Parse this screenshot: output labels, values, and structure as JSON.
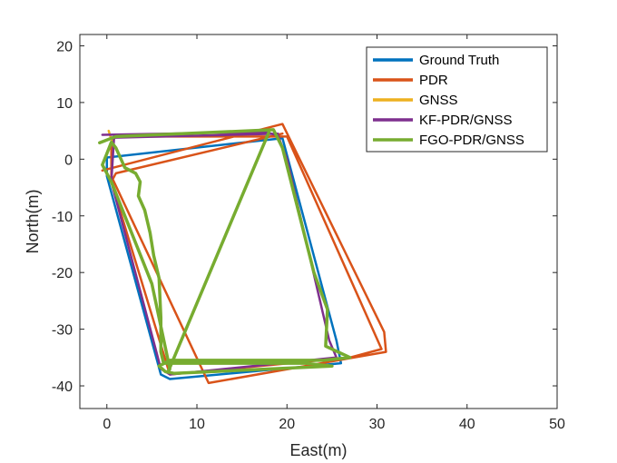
{
  "chart_data": {
    "type": "line",
    "xlabel": "East(m)",
    "ylabel": "North(m)",
    "xlim": [
      -3,
      50
    ],
    "ylim": [
      -44,
      22
    ],
    "xticks": [
      0,
      10,
      20,
      30,
      40,
      50
    ],
    "yticks": [
      -40,
      -30,
      -20,
      -10,
      0,
      10,
      20
    ],
    "grid": false,
    "legend_position": "top-right",
    "series": [
      {
        "name": "Ground Truth",
        "color": "#0072BD",
        "points": [
          [
            0,
            0.3
          ],
          [
            19.5,
            3.7
          ],
          [
            25.5,
            -32
          ],
          [
            26,
            -36
          ],
          [
            7,
            -38.8
          ],
          [
            6,
            -38
          ],
          [
            0,
            -3
          ],
          [
            0,
            0.3
          ]
        ]
      },
      {
        "name": "PDR",
        "color": "#D95319",
        "points": [
          [
            -0.5,
            -2
          ],
          [
            19.5,
            6.2
          ],
          [
            30.8,
            -30.5
          ],
          [
            31,
            -34
          ],
          [
            11.3,
            -39.5
          ],
          [
            0.5,
            -3
          ],
          [
            0.5,
            3
          ],
          [
            1,
            4
          ],
          [
            20,
            4
          ],
          [
            30.5,
            -33.5
          ],
          [
            27,
            -35
          ],
          [
            7,
            -38
          ],
          [
            0.5,
            -4
          ],
          [
            1,
            -2.5
          ],
          [
            19.5,
            4.5
          ]
        ]
      },
      {
        "name": "GNSS",
        "color": "#EDB120",
        "points": [
          [
            0.2,
            5
          ],
          [
            0.5,
            3.5
          ],
          [
            0.8,
            2.5
          ]
        ]
      },
      {
        "name": "KF-PDR/GNSS",
        "color": "#7E2F8E",
        "points": [
          [
            -0.5,
            4.3
          ],
          [
            17.5,
            4.8
          ],
          [
            19,
            4.2
          ],
          [
            20,
            0
          ],
          [
            24.7,
            -32
          ],
          [
            25.5,
            -35
          ],
          [
            7,
            -38
          ],
          [
            6,
            -37
          ],
          [
            0.5,
            -4
          ],
          [
            0.8,
            3.8
          ],
          [
            19,
            4.5
          ]
        ]
      },
      {
        "name": "FGO-PDR/GNSS",
        "color": "#77AC30",
        "points": [
          [
            -0.8,
            2.9
          ],
          [
            1,
            4
          ],
          [
            18.5,
            5.2
          ],
          [
            19.5,
            2
          ],
          [
            23,
            -20
          ],
          [
            24.5,
            -26.5
          ],
          [
            24.3,
            -33
          ],
          [
            27,
            -35
          ],
          [
            24,
            -35.5
          ],
          [
            7,
            -35.5
          ],
          [
            5.8,
            -36.5
          ],
          [
            6.5,
            -37.5
          ],
          [
            7.5,
            -37.8
          ],
          [
            25,
            -36.5
          ],
          [
            22,
            -36
          ],
          [
            10,
            -36
          ],
          [
            6.3,
            -36
          ],
          [
            6,
            -34
          ],
          [
            6,
            -28
          ],
          [
            5.8,
            -21
          ],
          [
            5.2,
            -17
          ],
          [
            4.8,
            -13
          ],
          [
            4.2,
            -9
          ],
          [
            3.5,
            -6.5
          ],
          [
            3.7,
            -4
          ],
          [
            3.2,
            -2.5
          ],
          [
            2,
            -1.5
          ],
          [
            1,
            2
          ],
          [
            0.5,
            3
          ],
          [
            0,
            1
          ],
          [
            -0.5,
            -1
          ],
          [
            0.5,
            -4
          ],
          [
            2,
            -10
          ],
          [
            5,
            -22
          ],
          [
            7,
            -37
          ],
          [
            6.8,
            -37.5
          ],
          [
            18,
            4.8
          ]
        ]
      }
    ]
  }
}
